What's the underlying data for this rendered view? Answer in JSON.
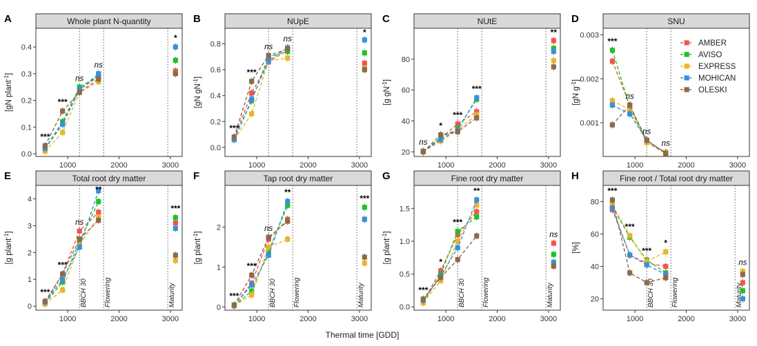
{
  "figure": {
    "xlabel": "Thermal time [GDD]"
  },
  "colors": {
    "AMBER": "#f2544b",
    "AVISO": "#22c02c",
    "EXPRESS": "#e9b52a",
    "MOHICAN": "#3a8fdb",
    "OLESKI": "#8c6a4a"
  },
  "legend": [
    "AMBER",
    "AVISO",
    "EXPRESS",
    "MOHICAN",
    "OLESKI"
  ],
  "chart_data": [
    {
      "letter": "A",
      "title": "Whole plant N-quantity",
      "ylabel": "[gN plant-1]",
      "type": "line",
      "xlim": [
        380,
        3230
      ],
      "xticks": [
        1000,
        2000,
        3000
      ],
      "ylim": [
        -0.01,
        0.47
      ],
      "yticks": [
        "0.0",
        "0.1",
        "0.2",
        "0.3",
        "0.4"
      ],
      "vlines": [
        1230,
        1700,
        2950
      ],
      "vlabels": [],
      "x": [
        560,
        900,
        1230,
        1600,
        3100
      ],
      "series": [
        {
          "name": "AMBER",
          "values": [
            0.02,
            0.12,
            0.24,
            0.29,
            0.31
          ]
        },
        {
          "name": "AVISO",
          "values": [
            0.02,
            0.12,
            0.25,
            0.29,
            0.35
          ]
        },
        {
          "name": "EXPRESS",
          "values": [
            0.01,
            0.08,
            0.23,
            0.27,
            0.3
          ]
        },
        {
          "name": "MOHICAN",
          "values": [
            0.02,
            0.11,
            0.24,
            0.3,
            0.4
          ]
        },
        {
          "name": "OLESKI",
          "values": [
            0.03,
            0.16,
            0.23,
            0.28,
            0.3
          ]
        }
      ],
      "significance": [
        "***",
        "***",
        "ns",
        "ns",
        "*"
      ]
    },
    {
      "letter": "B",
      "title": "NUpE",
      "ylabel": "[gN gN-1]",
      "type": "line",
      "xlim": [
        380,
        3230
      ],
      "xticks": [
        1000,
        2000,
        3000
      ],
      "ylim": [
        -0.07,
        0.92
      ],
      "yticks": [
        "0.0",
        "0.2",
        "0.4",
        "0.6",
        "0.8"
      ],
      "vlines": [
        1230,
        1700,
        2950
      ],
      "vlabels": [],
      "x": [
        560,
        900,
        1230,
        1600,
        3100
      ],
      "series": [
        {
          "name": "AMBER",
          "values": [
            0.07,
            0.42,
            0.66,
            0.75,
            0.65
          ]
        },
        {
          "name": "AVISO",
          "values": [
            0.06,
            0.36,
            0.7,
            0.74,
            0.73
          ]
        },
        {
          "name": "EXPRESS",
          "values": [
            0.06,
            0.26,
            0.67,
            0.69,
            0.61
          ]
        },
        {
          "name": "MOHICAN",
          "values": [
            0.06,
            0.37,
            0.67,
            0.77,
            0.83
          ]
        },
        {
          "name": "OLESKI",
          "values": [
            0.08,
            0.51,
            0.71,
            0.76,
            0.6
          ]
        }
      ],
      "significance": [
        "***",
        "***",
        "ns",
        "ns",
        "*"
      ]
    },
    {
      "letter": "C",
      "title": "NUtE",
      "ylabel": "[g gN-1]",
      "type": "line",
      "xlim": [
        380,
        3230
      ],
      "xticks": [
        1000,
        2000,
        3000
      ],
      "ylim": [
        17,
        100
      ],
      "yticks": [
        "20",
        "40",
        "60",
        "80"
      ],
      "vlines": [
        1230,
        1700,
        2950
      ],
      "vlabels": [],
      "x": [
        560,
        900,
        1230,
        1600,
        3100
      ],
      "series": [
        {
          "name": "AMBER",
          "values": [
            20.5,
            29,
            38,
            46,
            92
          ]
        },
        {
          "name": "AVISO",
          "values": [
            20,
            29,
            35,
            54,
            87
          ]
        },
        {
          "name": "EXPRESS",
          "values": [
            20,
            27,
            34,
            44,
            79
          ]
        },
        {
          "name": "MOHICAN",
          "values": [
            20,
            28,
            34,
            55,
            85
          ]
        },
        {
          "name": "OLESKI",
          "values": [
            20,
            31,
            33,
            42,
            75
          ]
        }
      ],
      "significance": [
        "ns",
        "*",
        "***",
        "***",
        "**"
      ]
    },
    {
      "letter": "D",
      "title": "SNU",
      "ylabel": "[gN g-1]",
      "type": "line",
      "xlim": [
        380,
        3230
      ],
      "xticks": [
        1000,
        2000,
        3000
      ],
      "ylim": [
        0.00023,
        0.00315
      ],
      "yticks": [
        "0.001",
        "0.002",
        "0.003"
      ],
      "vlines": [
        1230,
        1700
      ],
      "vlabels": [],
      "x": [
        560,
        900,
        1230,
        1600
      ],
      "series": [
        {
          "name": "AMBER",
          "values": [
            0.0024,
            0.0014,
            0.00055,
            0.0003
          ]
        },
        {
          "name": "AVISO",
          "values": [
            0.00265,
            0.00135,
            0.0006,
            0.0003
          ]
        },
        {
          "name": "EXPRESS",
          "values": [
            0.0015,
            0.0013,
            0.00055,
            0.00033
          ]
        },
        {
          "name": "MOHICAN",
          "values": [
            0.0014,
            0.0012,
            0.0006,
            0.0003
          ]
        },
        {
          "name": "OLESKI",
          "values": [
            0.00095,
            0.0014,
            0.0006,
            0.0003
          ]
        }
      ],
      "significance": [
        "***",
        "ns",
        "ns",
        "ns"
      ]
    },
    {
      "letter": "E",
      "title": "Total root dry matter",
      "ylabel": "[g plant-1]",
      "type": "line",
      "xlim": [
        380,
        3230
      ],
      "xticks": [
        1000,
        2000,
        3000
      ],
      "ylim": [
        -0.15,
        4.5
      ],
      "yticks": [
        "0",
        "1",
        "2",
        "3",
        "4"
      ],
      "vlines": [
        1230,
        1700,
        2950
      ],
      "vlabels": [
        "BBCH 30",
        "Flowering",
        "Maturity"
      ],
      "x": [
        560,
        900,
        1230,
        1600,
        3100
      ],
      "series": [
        {
          "name": "AMBER",
          "values": [
            0.12,
            1.2,
            2.8,
            3.5,
            3.1
          ]
        },
        {
          "name": "AVISO",
          "values": [
            0.1,
            0.9,
            2.4,
            3.9,
            3.3
          ]
        },
        {
          "name": "EXPRESS",
          "values": [
            0.08,
            0.6,
            2.3,
            3.3,
            1.7
          ]
        },
        {
          "name": "MOHICAN",
          "values": [
            0.15,
            1.0,
            2.2,
            4.3,
            2.9
          ]
        },
        {
          "name": "OLESKI",
          "values": [
            0.18,
            1.2,
            2.5,
            3.2,
            1.9
          ]
        }
      ],
      "significance": [
        "***",
        "***",
        "ns",
        "**",
        "***"
      ]
    },
    {
      "letter": "F",
      "title": "Tap root dry matter",
      "ylabel": "[g plant-1]",
      "type": "line",
      "xlim": [
        380,
        3230
      ],
      "xticks": [
        1000,
        2000,
        3000
      ],
      "ylim": [
        -0.08,
        3.05
      ],
      "yticks": [
        "0",
        "1",
        "2"
      ],
      "vlines": [
        1230,
        1700,
        2950
      ],
      "vlabels": [
        "BBCH 30",
        "Flowering",
        "Maturity"
      ],
      "x": [
        560,
        900,
        1230,
        1600,
        3100
      ],
      "series": [
        {
          "name": "AMBER",
          "values": [
            0.03,
            0.6,
            1.7,
            2.2,
            2.2
          ]
        },
        {
          "name": "AVISO",
          "values": [
            0.03,
            0.4,
            1.4,
            2.55,
            2.5
          ]
        },
        {
          "name": "EXPRESS",
          "values": [
            0.03,
            0.3,
            1.5,
            1.7,
            1.1
          ]
        },
        {
          "name": "MOHICAN",
          "values": [
            0.04,
            0.55,
            1.3,
            2.65,
            2.2
          ]
        },
        {
          "name": "OLESKI",
          "values": [
            0.05,
            0.8,
            1.75,
            2.15,
            1.25
          ]
        }
      ],
      "significance": [
        "***",
        "***",
        "ns",
        "**",
        "***"
      ]
    },
    {
      "letter": "G",
      "title": "Fine root dry matter",
      "ylabel": "[g plant-1]",
      "type": "line",
      "xlim": [
        380,
        3230
      ],
      "xticks": [
        1000,
        2000,
        3000
      ],
      "ylim": [
        -0.05,
        1.85
      ],
      "yticks": [
        "0.0",
        "0.5",
        "1.0",
        "1.5"
      ],
      "vlines": [
        1230,
        1700,
        2950
      ],
      "vlabels": [
        "BBCH 30",
        "Flowering",
        "Maturity"
      ],
      "x": [
        560,
        900,
        1230,
        1600,
        3100
      ],
      "series": [
        {
          "name": "AMBER",
          "values": [
            0.09,
            0.55,
            1.1,
            1.45,
            0.97
          ]
        },
        {
          "name": "AVISO",
          "values": [
            0.07,
            0.5,
            1.15,
            1.37,
            0.8
          ]
        },
        {
          "name": "EXPRESS",
          "values": [
            0.06,
            0.4,
            1.0,
            1.55,
            0.65
          ]
        },
        {
          "name": "MOHICAN",
          "values": [
            0.1,
            0.47,
            0.9,
            1.63,
            0.68
          ]
        },
        {
          "name": "OLESKI",
          "values": [
            0.12,
            0.45,
            0.72,
            1.08,
            0.62
          ]
        }
      ],
      "significance": [
        "***",
        "*",
        "***",
        "**",
        "ns"
      ]
    },
    {
      "letter": "H",
      "title": "Fine root / Total root dry matter",
      "ylabel": "[%]",
      "type": "line",
      "xlim": [
        380,
        3230
      ],
      "xticks": [
        1000,
        2000,
        3000
      ],
      "ylim": [
        13,
        90
      ],
      "yticks": [
        "20",
        "40",
        "60",
        "80"
      ],
      "vlines": [
        1230,
        1700,
        2950
      ],
      "vlabels": [
        "BBCH 30",
        "Flowering",
        "Maturity"
      ],
      "x": [
        560,
        900,
        1230,
        1600,
        3100
      ],
      "series": [
        {
          "name": "AMBER",
          "values": [
            75,
            47,
            42,
            40,
            30
          ]
        },
        {
          "name": "AVISO",
          "values": [
            77,
            58,
            44,
            36,
            25
          ]
        },
        {
          "name": "EXPRESS",
          "values": [
            78,
            59,
            43,
            49,
            37
          ]
        },
        {
          "name": "MOHICAN",
          "values": [
            76,
            47,
            41,
            35,
            20
          ]
        },
        {
          "name": "OLESKI",
          "values": [
            81,
            36,
            30,
            33,
            35
          ]
        }
      ],
      "significance": [
        "***",
        "***",
        "***",
        "*",
        "ns"
      ]
    }
  ]
}
